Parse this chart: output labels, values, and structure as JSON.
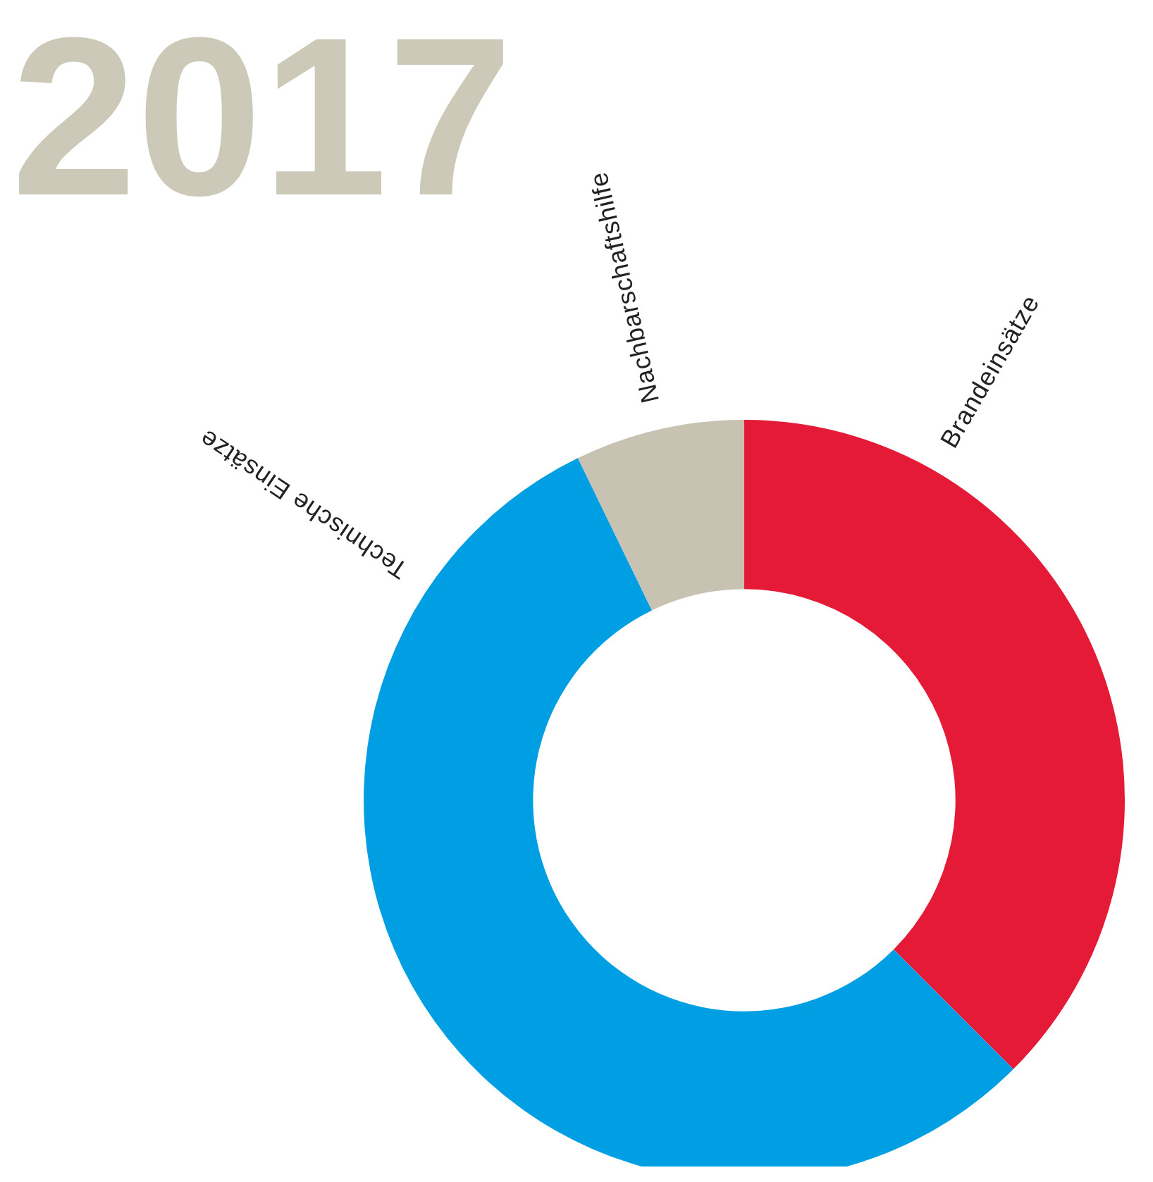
{
  "chart_data": {
    "type": "donut",
    "title": "2017",
    "categories": [
      "Brandeinsätze",
      "Technische Einsätze",
      "Nachbarschaftshilfe"
    ],
    "values": [
      37.5,
      55.3,
      7.2
    ],
    "colors": [
      "#e41a37",
      "#009fe3",
      "#c8c2b2"
    ]
  }
}
